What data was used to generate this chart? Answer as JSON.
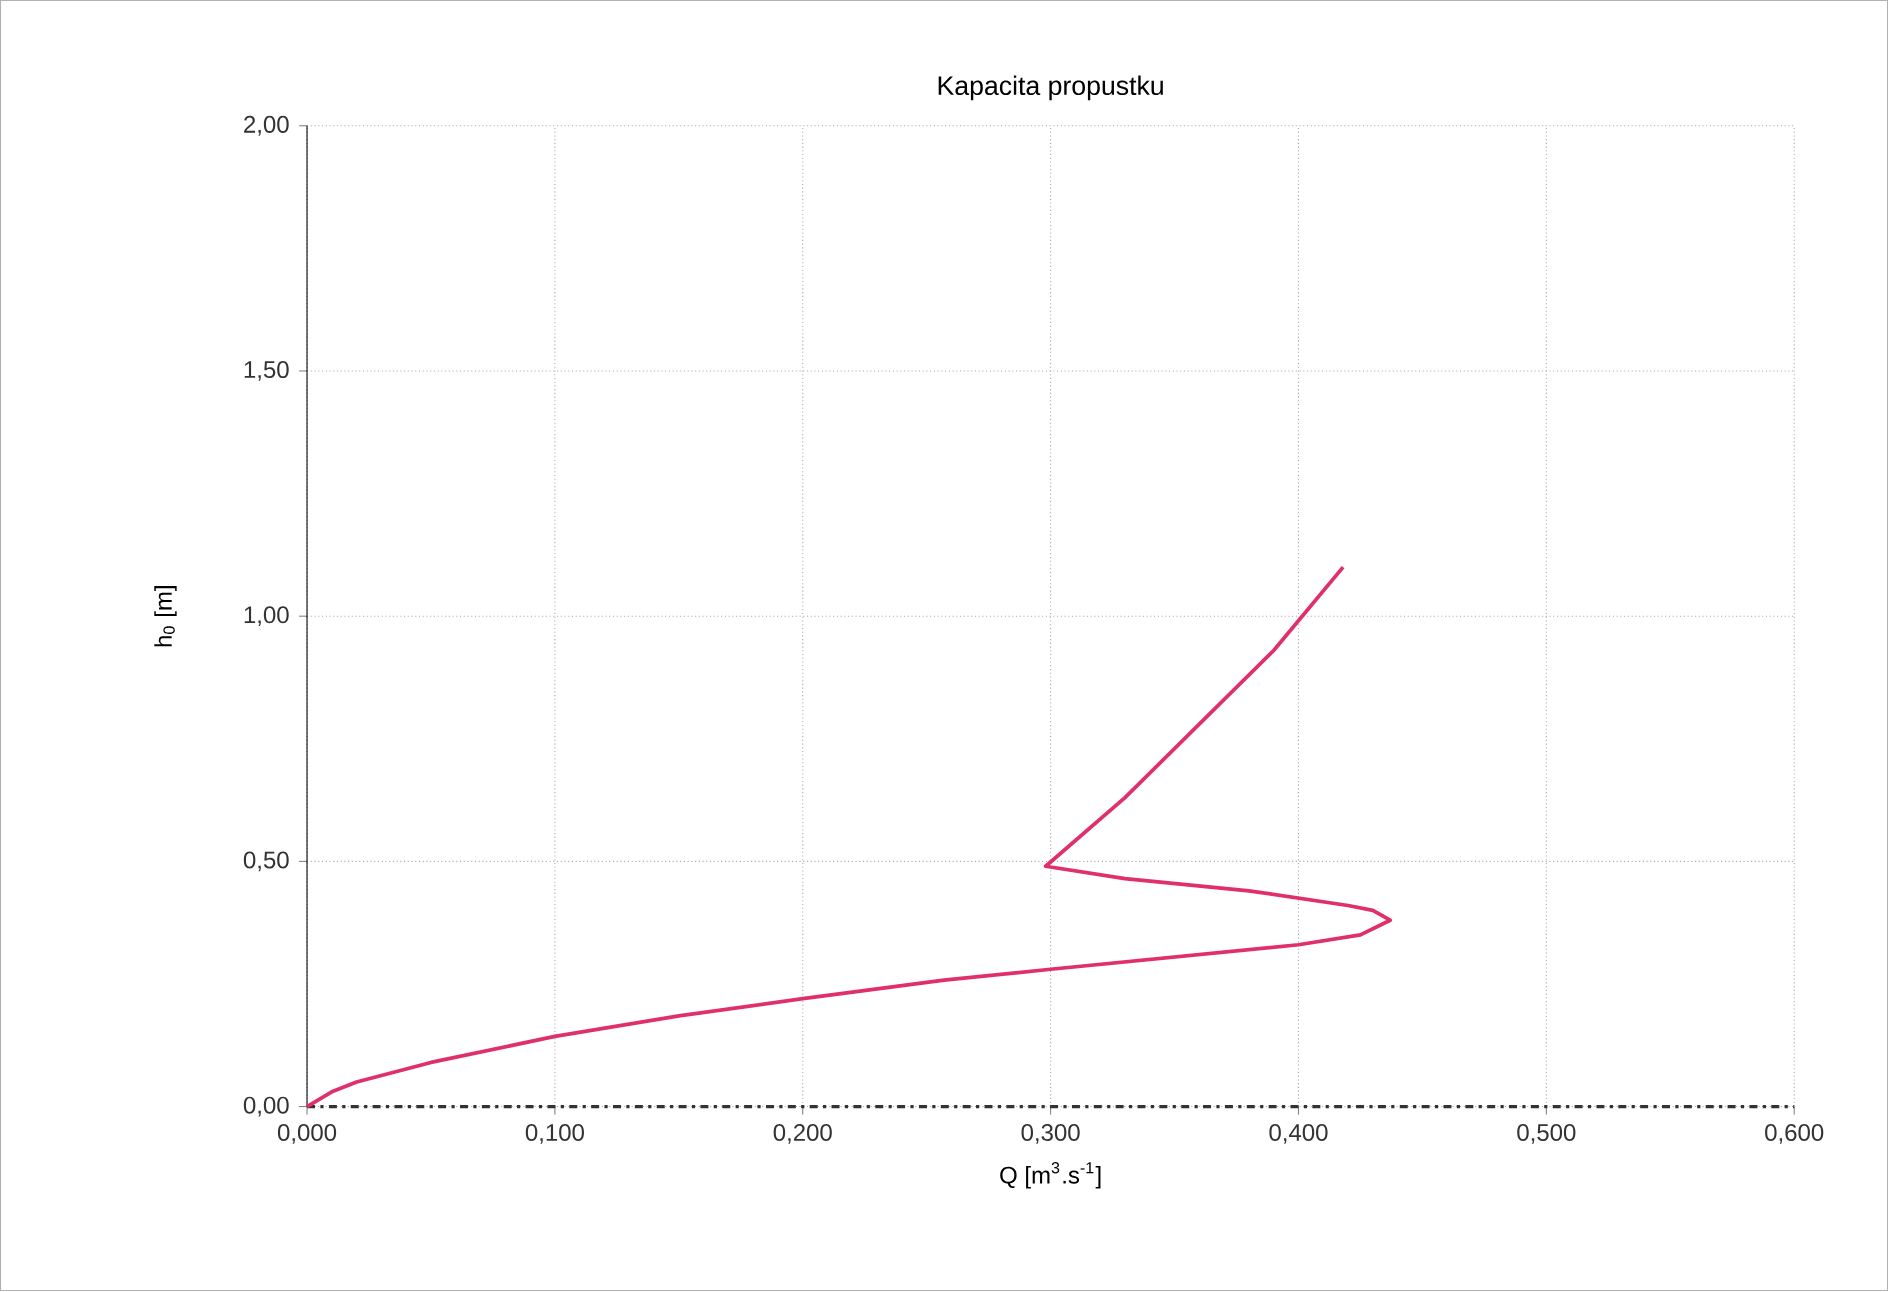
{
  "chart_data": {
    "type": "line",
    "title": "Kapacita propustku",
    "xlabel": "Q [m$^{3}$.s$^{-1}$]",
    "ylabel": "h$_{0}$ [m]",
    "xlim": [
      0,
      0.6
    ],
    "ylim": [
      0,
      2
    ],
    "xticks": [
      {
        "value": 0,
        "label": "0,000"
      },
      {
        "value": 0.1,
        "label": "0,100"
      },
      {
        "value": 0.2,
        "label": "0,200"
      },
      {
        "value": 0.3,
        "label": "0,300"
      },
      {
        "value": 0.4,
        "label": "0,400"
      },
      {
        "value": 0.5,
        "label": "0,500"
      },
      {
        "value": 0.6,
        "label": "0,600"
      }
    ],
    "yticks": [
      {
        "value": 0,
        "label": "0,00"
      },
      {
        "value": 0.5,
        "label": "0,50"
      },
      {
        "value": 1,
        "label": "1,00"
      },
      {
        "value": 1.5,
        "label": "1,50"
      },
      {
        "value": 2,
        "label": "2,00"
      }
    ],
    "grid": true,
    "marker": "none",
    "line_style": "solid",
    "ref_lines": [
      {
        "axis": "y",
        "value": 0,
        "color": "#333333",
        "line_style": "dashed"
      }
    ],
    "series": [
      {
        "color": "#e0306a",
        "x": [
          0,
          0.01,
          0.02,
          0.05,
          0.1,
          0.15,
          0.2,
          0.257,
          0.3,
          0.35,
          0.4,
          0.425,
          0.437,
          0.43,
          0.42,
          0.38,
          0.33,
          0.298,
          0.33,
          0.36,
          0.39,
          0.418
        ],
        "values": [
          0,
          0.03,
          0.05,
          0.09,
          0.143,
          0.185,
          0.22,
          0.258,
          0.28,
          0.305,
          0.33,
          0.35,
          0.38,
          0.4,
          0.41,
          0.44,
          0.465,
          0.49,
          0.63,
          0.78,
          0.93,
          1.1
        ]
      }
    ]
  }
}
